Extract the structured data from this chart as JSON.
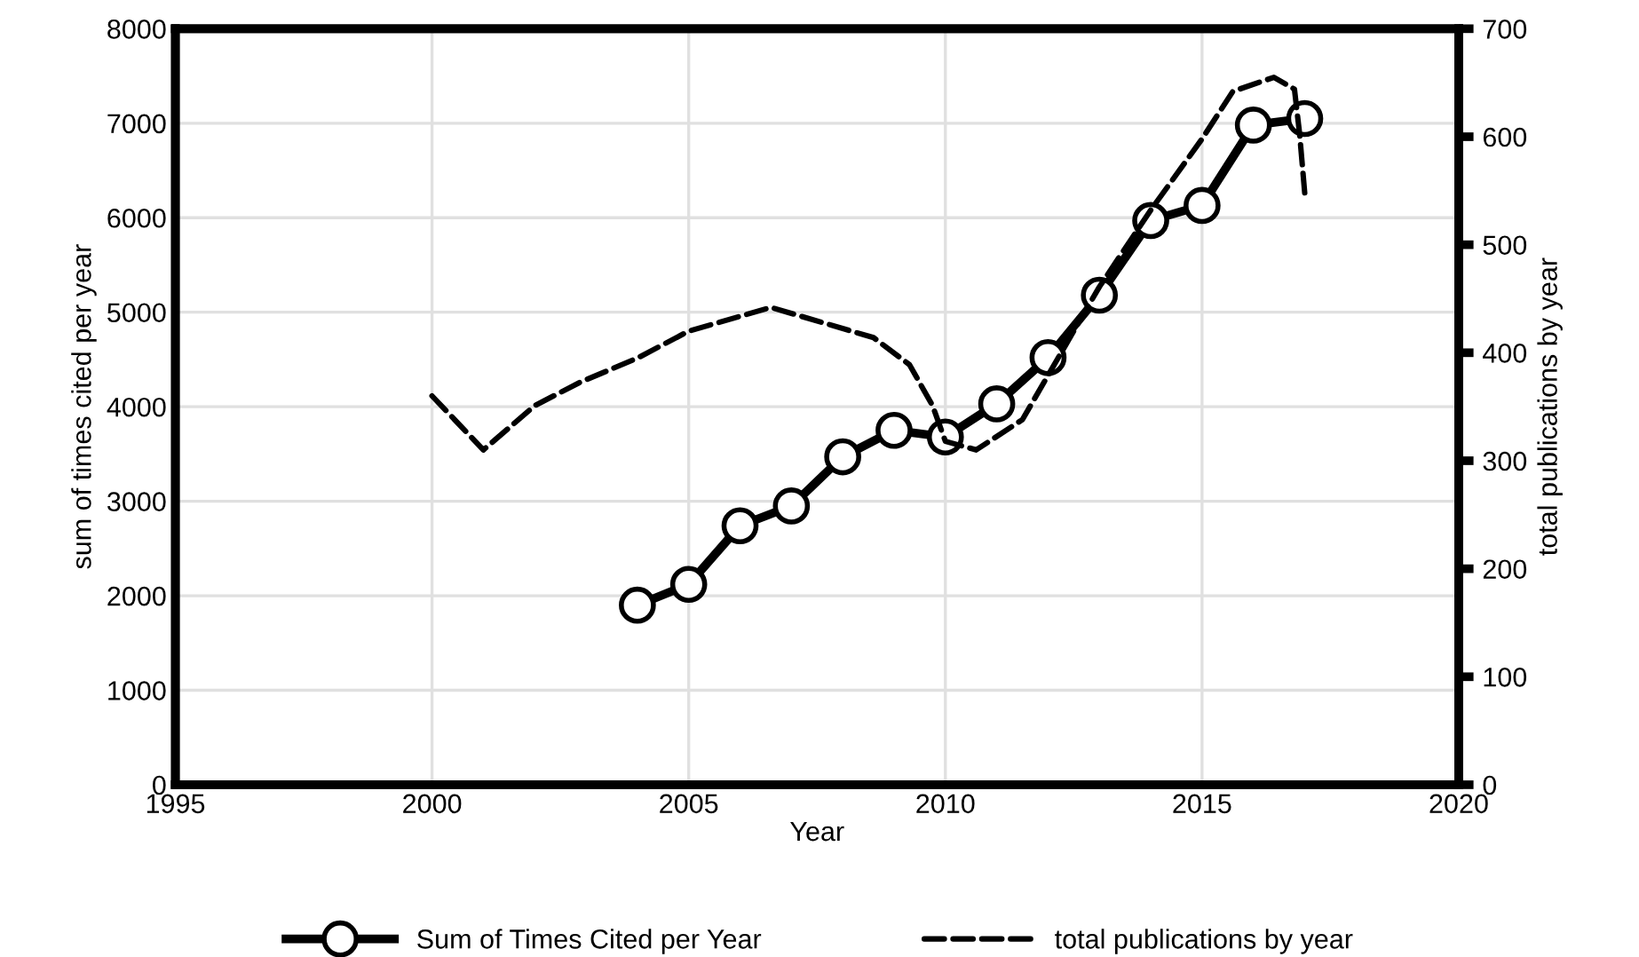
{
  "chart_data": {
    "type": "line",
    "xlabel": "Year",
    "ylabel": "sum of times cited per year",
    "y2label": "total publications by year",
    "xlim": [
      1995,
      2020
    ],
    "xticks": [
      1995,
      2000,
      2005,
      2010,
      2015,
      2020
    ],
    "ylim": [
      0,
      8000
    ],
    "yticks": [
      0,
      1000,
      2000,
      3000,
      4000,
      5000,
      6000,
      7000,
      8000
    ],
    "y2lim": [
      0,
      700
    ],
    "y2ticks": [
      0,
      100,
      200,
      300,
      400,
      500,
      600,
      700
    ],
    "grid": true,
    "legend": "bottom",
    "series": [
      {
        "name": "Sum of Times Cited per Year",
        "color": "#000000",
        "marker": "circle",
        "line_style": "solid",
        "x": [
          2004,
          2005,
          2006,
          2007,
          2008,
          2009,
          2010,
          2011,
          2012,
          2013,
          2014,
          2015,
          2016,
          2017
        ],
        "values": [
          1900,
          2120,
          2740,
          2950,
          3470,
          3750,
          3680,
          4030,
          4520,
          5180,
          5970,
          6130,
          6980,
          7050
        ]
      },
      {
        "name": "total publications by year",
        "color": "#000000",
        "marker": "none",
        "line_style": "dashed",
        "axis": "y2",
        "x": [
          2000,
          2001,
          2002,
          2002.9,
          2004,
          2005,
          2006.6,
          2008.6,
          2009.3,
          2009.75,
          2010,
          2010.6,
          2011.5,
          2013,
          2014,
          2015,
          2015.6,
          2016.4,
          2016.8,
          2016.9,
          2017
        ],
        "values": [
          360,
          310,
          351,
          373,
          395,
          420,
          442,
          414,
          389,
          351,
          318,
          310,
          338,
          461,
          532,
          598,
          642,
          655,
          644,
          603,
          548
        ]
      }
    ]
  }
}
